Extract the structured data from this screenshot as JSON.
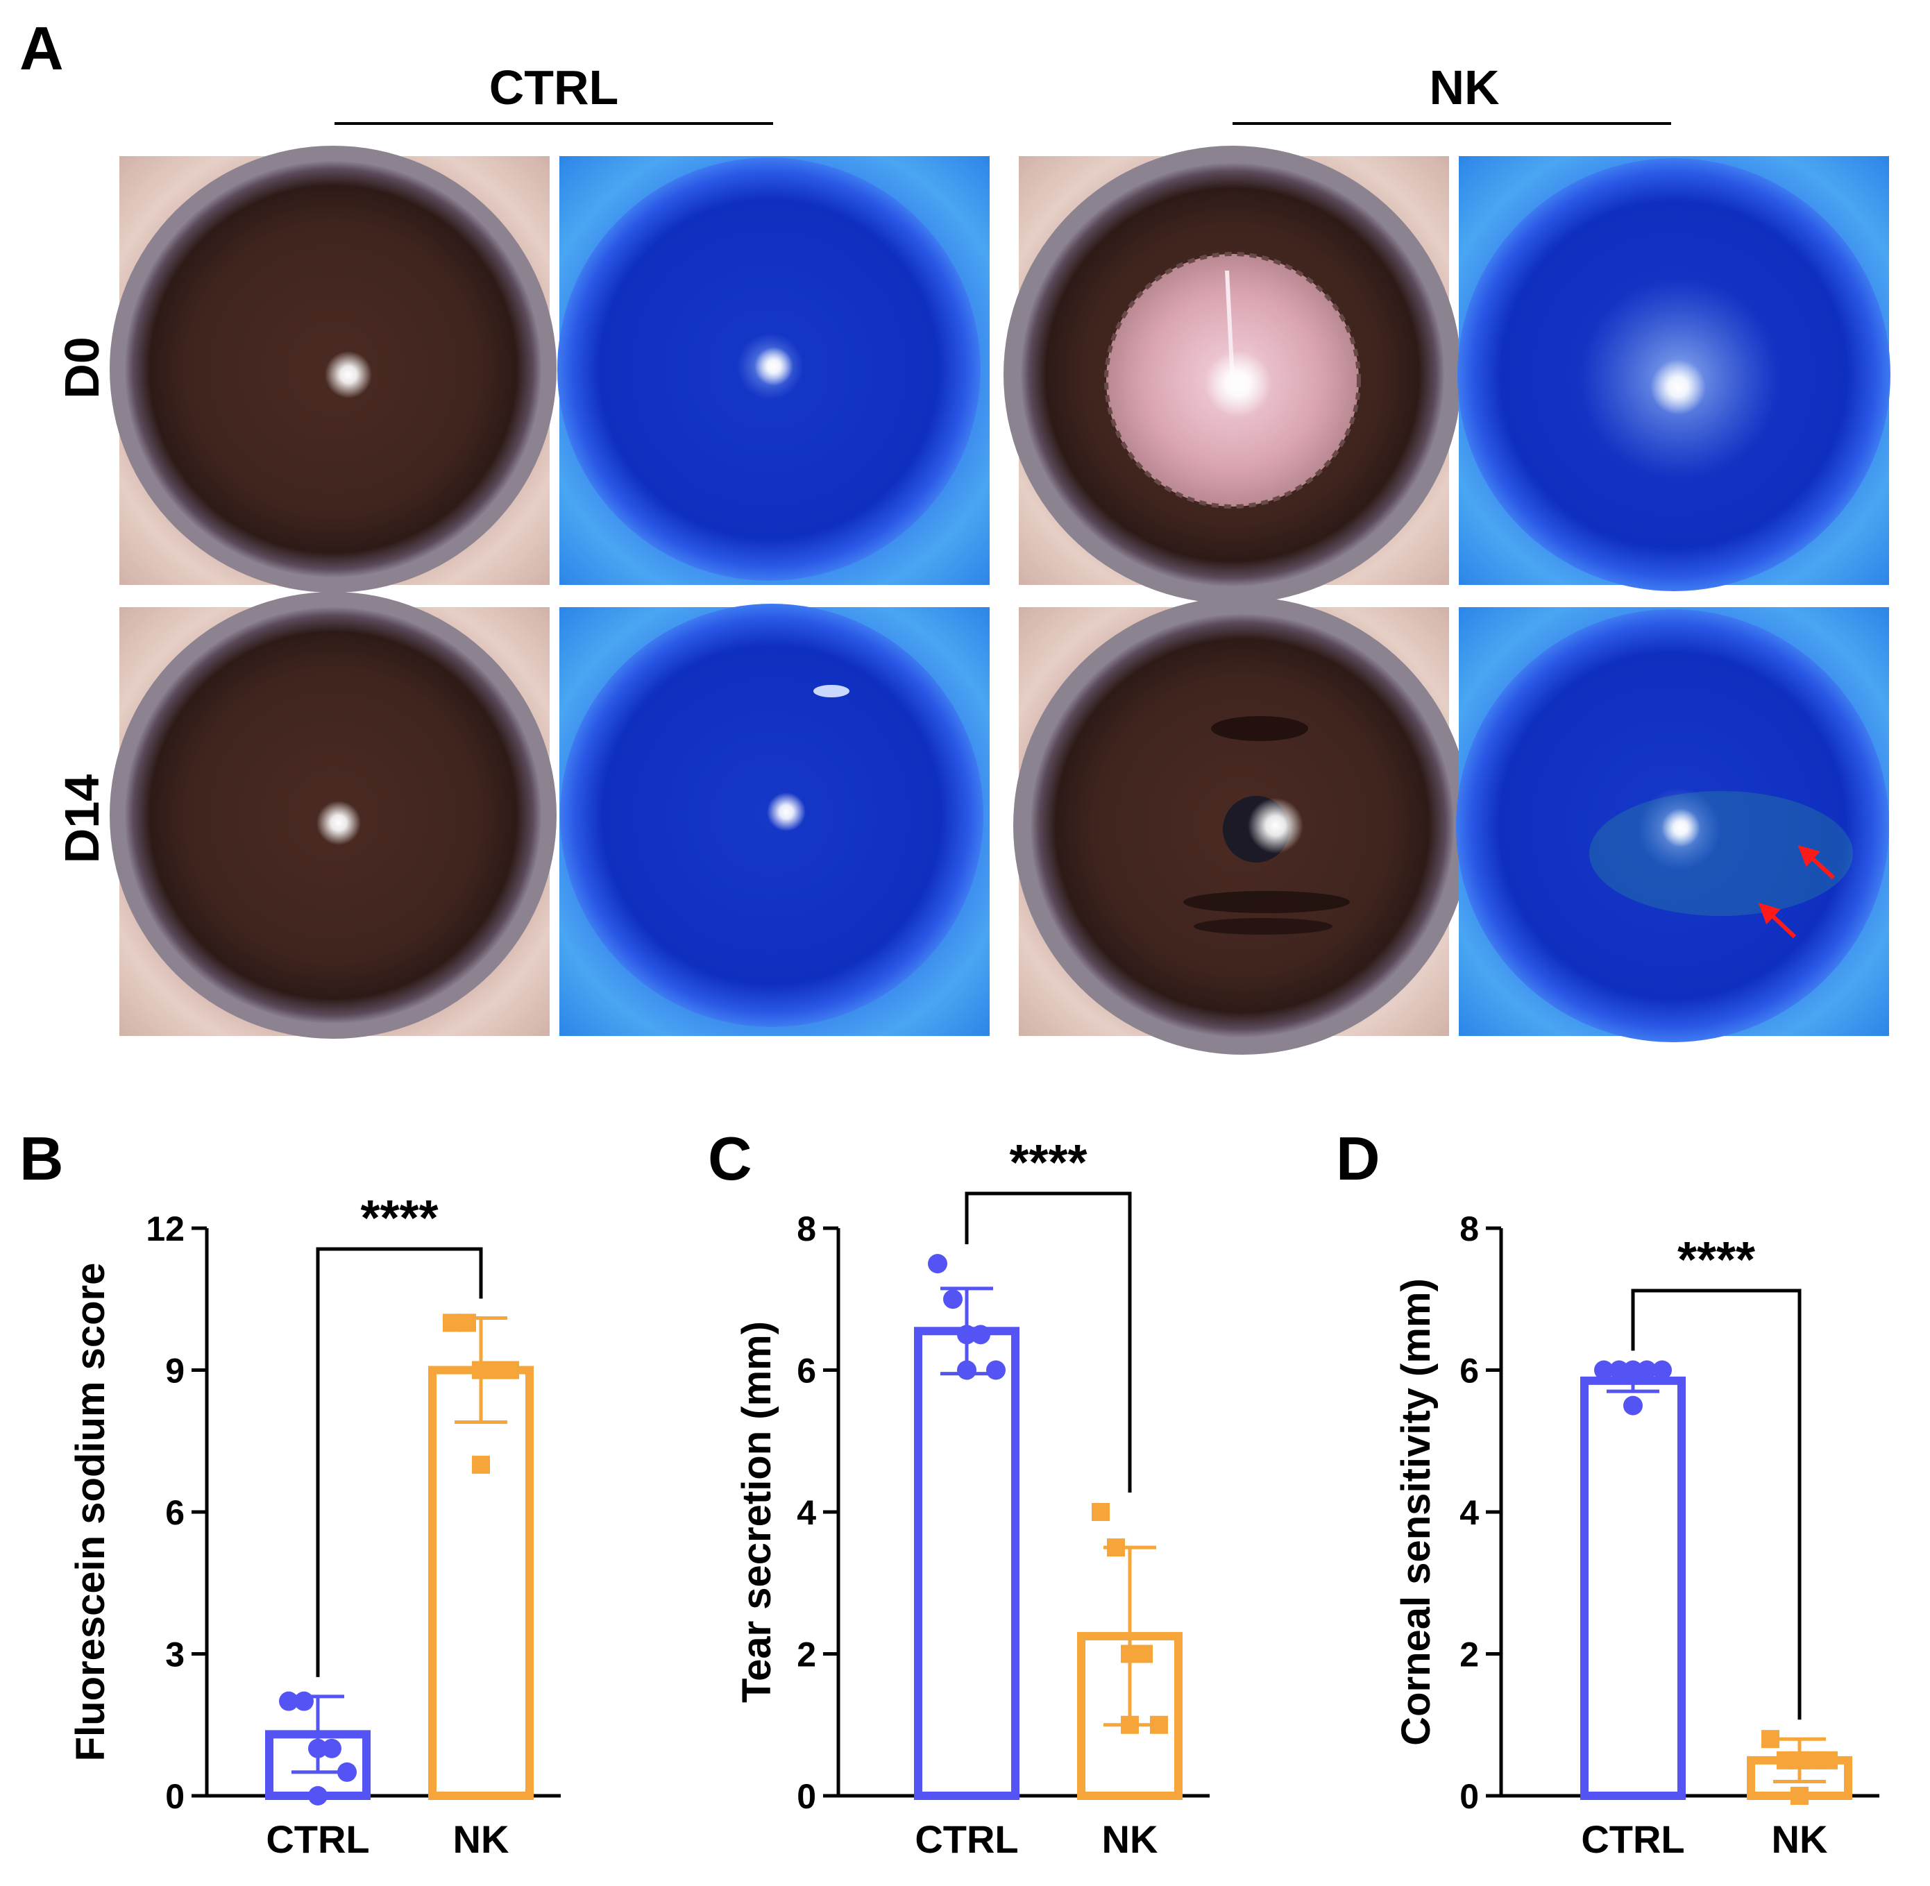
{
  "panels": {
    "A": "A",
    "B": "B",
    "C": "C",
    "D": "D"
  },
  "groups": [
    "CTRL",
    "NK"
  ],
  "timepoints": [
    "D0",
    "D14"
  ],
  "colors": {
    "ctrl": "#5454f5",
    "nk": "#f5a53a",
    "arrow": "#ff1a1a"
  },
  "chart_data": [
    {
      "type": "bar",
      "panel": "B",
      "categories": [
        "CTRL",
        "NK"
      ],
      "values": [
        1.3,
        9.0
      ],
      "error": [
        0.8,
        1.1
      ],
      "points": [
        [
          2,
          2,
          1,
          1,
          0.5,
          0
        ],
        [
          10,
          10,
          9,
          9,
          9,
          7
        ]
      ],
      "ylabel": "Fluorescein sodium score",
      "ylim": [
        0,
        12
      ],
      "yticks": [
        0,
        3,
        6,
        9,
        12
      ],
      "significance": "****"
    },
    {
      "type": "bar",
      "panel": "C",
      "categories": [
        "CTRL",
        "NK"
      ],
      "values": [
        6.55,
        2.25
      ],
      "error": [
        0.6,
        1.25
      ],
      "points": [
        [
          7.5,
          7.0,
          6.5,
          6.5,
          6.0,
          6.0
        ],
        [
          4.0,
          3.5,
          2.0,
          2.0,
          1.0,
          1.0
        ]
      ],
      "ylabel": "Tear secretion (mm)",
      "ylim": [
        0,
        8
      ],
      "yticks": [
        0,
        2,
        4,
        6,
        8
      ],
      "significance": "****"
    },
    {
      "type": "bar",
      "panel": "D",
      "categories": [
        "CTRL",
        "NK"
      ],
      "values": [
        5.85,
        0.5
      ],
      "error": [
        0.15,
        0.3
      ],
      "points": [
        [
          6.0,
          6.0,
          6.0,
          6.0,
          6.0,
          5.5
        ],
        [
          0.8,
          0.5,
          0.5,
          0.5,
          0.5,
          0.0
        ]
      ],
      "ylabel": "Corneal sensitivity (mm)",
      "ylim": [
        0,
        8
      ],
      "yticks": [
        0,
        2,
        4,
        6,
        8
      ],
      "significance": "****"
    }
  ]
}
